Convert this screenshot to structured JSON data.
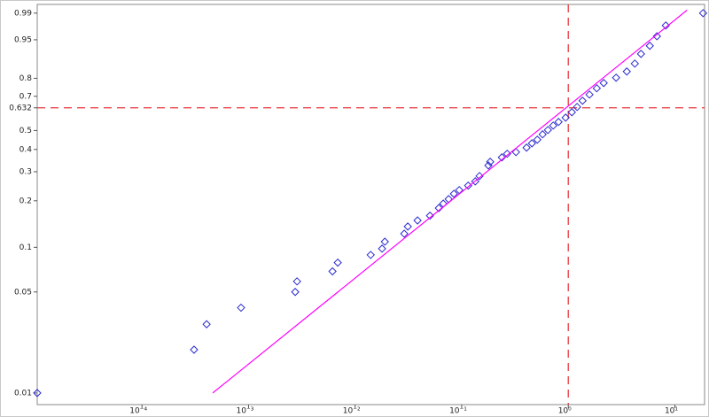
{
  "chart_data": {
    "type": "weibull-probability",
    "xscale": "log",
    "yscale": "weibull",
    "xlim": [
      1.04e-05,
      19
    ],
    "ylim": [
      0.0083,
      0.995
    ],
    "xticks": [
      {
        "value": 0.0001,
        "label": "10⁻⁴"
      },
      {
        "value": 0.001,
        "label": "10⁻³"
      },
      {
        "value": 0.01,
        "label": "10⁻²"
      },
      {
        "value": 0.1,
        "label": "10⁻¹"
      },
      {
        "value": 1,
        "label": "10⁰"
      },
      {
        "value": 10,
        "label": "10¹"
      }
    ],
    "yticks": [
      0.01,
      0.05,
      0.1,
      0.2,
      0.3,
      0.4,
      0.5,
      0.632,
      0.7,
      0.8,
      0.95,
      0.99
    ],
    "series": [
      {
        "style": "diamond",
        "color": "#2a2ad0",
        "x": [
          1.04e-05,
          0.000308,
          0.000404,
          0.00085,
          0.00274,
          0.00285,
          0.00613,
          0.00687,
          0.014,
          0.0179,
          0.019,
          0.0289,
          0.0312,
          0.0385,
          0.0504,
          0.061,
          0.0671,
          0.0753,
          0.0845,
          0.0948,
          0.115,
          0.134,
          0.147,
          0.178,
          0.185,
          0.238,
          0.267,
          0.323,
          0.406,
          0.456,
          0.512,
          0.574,
          0.644,
          0.722,
          0.81,
          0.944,
          1.08,
          1.21,
          1.36,
          1.58,
          1.85,
          2.15,
          2.81,
          3.54,
          4.21,
          4.81,
          5.82,
          6.79,
          8.22,
          18.4
        ],
        "values": [
          0.01,
          0.02,
          0.03,
          0.039,
          0.05,
          0.059,
          0.069,
          0.079,
          0.089,
          0.098,
          0.109,
          0.123,
          0.137,
          0.15,
          0.161,
          0.18,
          0.192,
          0.205,
          0.221,
          0.233,
          0.248,
          0.263,
          0.283,
          0.326,
          0.342,
          0.362,
          0.379,
          0.387,
          0.409,
          0.431,
          0.45,
          0.479,
          0.503,
          0.528,
          0.549,
          0.574,
          0.606,
          0.637,
          0.674,
          0.71,
          0.746,
          0.775,
          0.803,
          0.834,
          0.87,
          0.908,
          0.934,
          0.958,
          0.977,
          0.99
        ]
      },
      {
        "style": "line",
        "color": "#ff00ff",
        "x": [
          0.000461,
          13.0
        ],
        "values": [
          0.01,
          0.992
        ]
      }
    ],
    "ref_lines": {
      "x": 1,
      "y": 0.632,
      "color": "#e8383d"
    }
  }
}
